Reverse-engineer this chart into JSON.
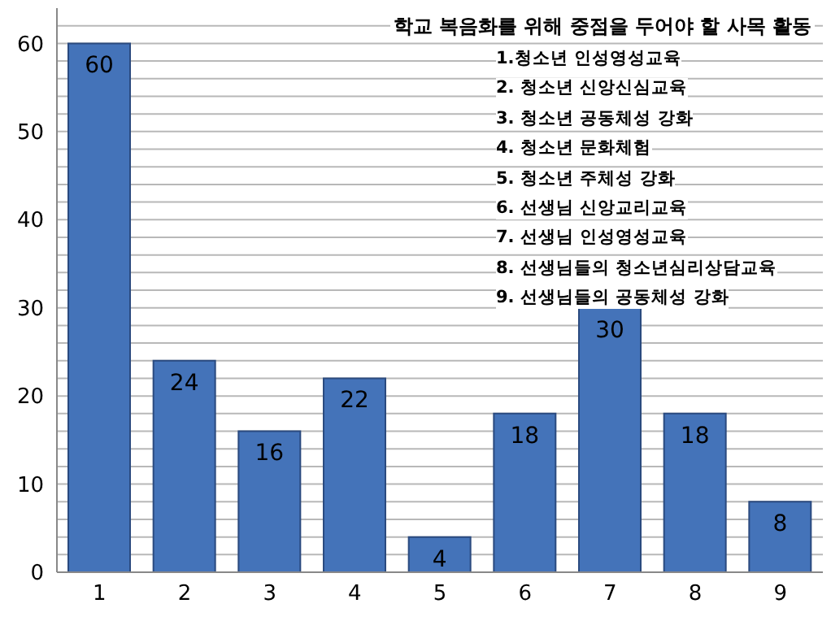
{
  "chart_data": {
    "type": "bar",
    "title": "학교 복음화를 위해 중점을 두어야 할 사목 활동",
    "categories": [
      "1",
      "2",
      "3",
      "4",
      "5",
      "6",
      "7",
      "8",
      "9"
    ],
    "values": [
      60,
      24,
      16,
      22,
      4,
      18,
      30,
      18,
      8
    ],
    "color": "#4473b9",
    "ylim": [
      0,
      64
    ],
    "yticks": [
      0,
      {
        "value": 2,
        "label": null
      },
      {
        "value": 4,
        "label": null
      },
      {
        "value": 6,
        "label": null
      },
      {
        "value": 8,
        "label": null
      },
      10,
      {
        "value": 12,
        "label": null
      },
      {
        "value": 14,
        "label": null
      },
      {
        "value": 16,
        "label": null
      },
      {
        "value": 18,
        "label": null
      },
      20,
      {
        "value": 22,
        "label": null
      },
      {
        "value": 24,
        "label": null
      },
      {
        "value": 26,
        "label": null
      },
      {
        "value": 28,
        "label": null
      },
      30,
      {
        "value": 32,
        "label": null
      },
      {
        "value": 34,
        "label": null
      },
      {
        "value": 36,
        "label": null
      },
      {
        "value": 38,
        "label": null
      },
      40,
      {
        "value": 42,
        "label": null
      },
      {
        "value": 44,
        "label": null
      },
      {
        "value": 46,
        "label": null
      },
      {
        "value": 48,
        "label": null
      },
      50,
      {
        "value": 52,
        "label": null
      },
      {
        "value": 54,
        "label": null
      },
      {
        "value": 56,
        "label": null
      },
      {
        "value": 58,
        "label": null
      },
      60,
      {
        "value": 62,
        "label": null
      }
    ],
    "grid": "y",
    "data_labels": true,
    "annotations": [
      "1.청소년 인성영성교육",
      "2. 청소년 신앙신심교육",
      "3. 청소년 공동체성 강화",
      "4. 청소년 문화체험",
      "5. 청소년 주체성 강화",
      "6. 선생님 신앙교리교육",
      "7. 선생님 인성영성교육",
      "8. 선생님들의 청소년심리상담교육",
      "9. 선생님들의 공동체성 강화"
    ]
  }
}
